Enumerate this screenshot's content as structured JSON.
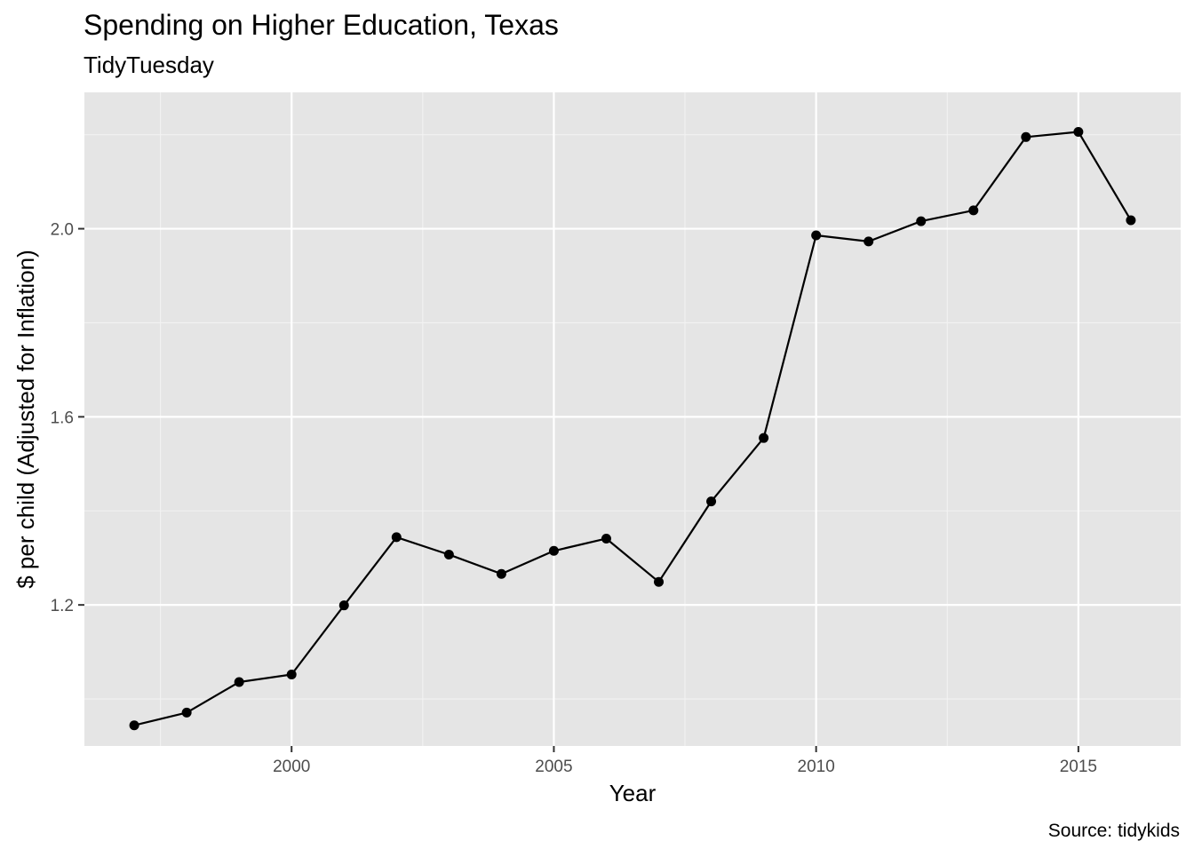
{
  "chart_data": {
    "type": "line",
    "title": "Spending on Higher Education, Texas",
    "subtitle": "TidyTuesday",
    "caption": "Source: tidykids",
    "xlabel": "Year",
    "ylabel": "$ per child (Adjusted for Inflation)",
    "xlim": [
      1996.05,
      2016.95
    ],
    "ylim": [
      0.9,
      2.29
    ],
    "x_ticks": [
      2000,
      2005,
      2010,
      2015
    ],
    "x_tick_labels": [
      "2000",
      "2005",
      "2010",
      "2015"
    ],
    "y_ticks": [
      1.2,
      1.6,
      2.0
    ],
    "y_tick_labels": [
      "1.2",
      "1.6",
      "2.0"
    ],
    "grid": true,
    "series": [
      {
        "x": [
          1997,
          1998,
          1999,
          2000,
          2001,
          2002,
          2003,
          2004,
          2005,
          2006,
          2007,
          2008,
          2009,
          2010,
          2011,
          2012,
          2013,
          2014,
          2015,
          2016
        ],
        "y": [
          0.944,
          0.971,
          1.036,
          1.052,
          1.199,
          1.344,
          1.307,
          1.266,
          1.315,
          1.341,
          1.249,
          1.42,
          1.555,
          1.986,
          1.973,
          2.016,
          2.039,
          2.195,
          2.206,
          2.018
        ]
      }
    ],
    "colors": {
      "panel": "#e5e5e5",
      "grid_major": "#ffffff",
      "grid_minor": "#f2f2f2",
      "line": "#000000",
      "point": "#000000",
      "tick_label": "#4d4d4d",
      "text": "#000000"
    }
  }
}
